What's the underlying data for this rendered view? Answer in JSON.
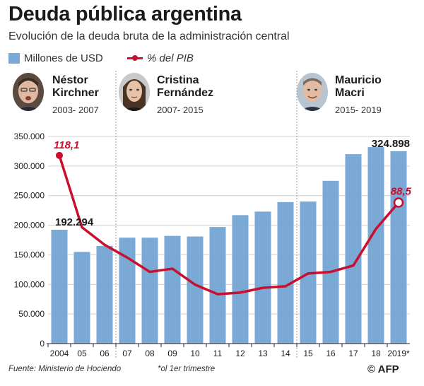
{
  "header": {
    "title": "Deuda pública argentina",
    "subtitle": "Evolución de la deuda bruta de la administración central"
  },
  "legend": {
    "bars_label": "Millones de USD",
    "line_label": "% del PIB"
  },
  "presidents": [
    {
      "name_line1": "Néstor",
      "name_line2": "Kirchner",
      "years": "2003- 2007"
    },
    {
      "name_line1": "Cristina",
      "name_line2": "Fernández",
      "years": "2007- 2015"
    },
    {
      "name_line1": "Mauricio",
      "name_line2": "Macri",
      "years": "2015- 2019"
    }
  ],
  "chart_data": {
    "type": "bar",
    "title": "Deuda pública argentina",
    "categories": [
      "2004",
      "05",
      "06",
      "07",
      "08",
      "09",
      "10",
      "11",
      "12",
      "13",
      "14",
      "15",
      "16",
      "17",
      "18",
      "2019*"
    ],
    "series": [
      {
        "name": "Millones de USD",
        "type": "bar",
        "values": [
          192294,
          155000,
          165000,
          179000,
          179000,
          182000,
          181000,
          197000,
          217000,
          223000,
          239000,
          240000,
          275000,
          320000,
          332000,
          324898
        ]
      },
      {
        "name": "% del PIB",
        "type": "line",
        "values": [
          118.1,
          73,
          62,
          54,
          45,
          47,
          37,
          31,
          32,
          35,
          36,
          44,
          45,
          49,
          72,
          88.5
        ]
      }
    ],
    "ylim": [
      0,
      350000
    ],
    "yticks": [
      "0",
      "50.000",
      "100.000",
      "150.000",
      "200.000",
      "250.000",
      "300.000",
      "350.000"
    ],
    "secondary_ylim": [
      0,
      130
    ],
    "annotations": {
      "first_bar": "192.294",
      "last_bar": "324.898",
      "first_line": "118,1",
      "last_line": "88,5"
    },
    "colors": {
      "bar": "#7aa9d6",
      "line": "#c8102e",
      "grid": "#d0d0d0"
    }
  },
  "footer": {
    "source": "Fuente: Ministerio de Hociendo",
    "footnote": "*ol 1er trimestre",
    "credit": "© AFP"
  }
}
